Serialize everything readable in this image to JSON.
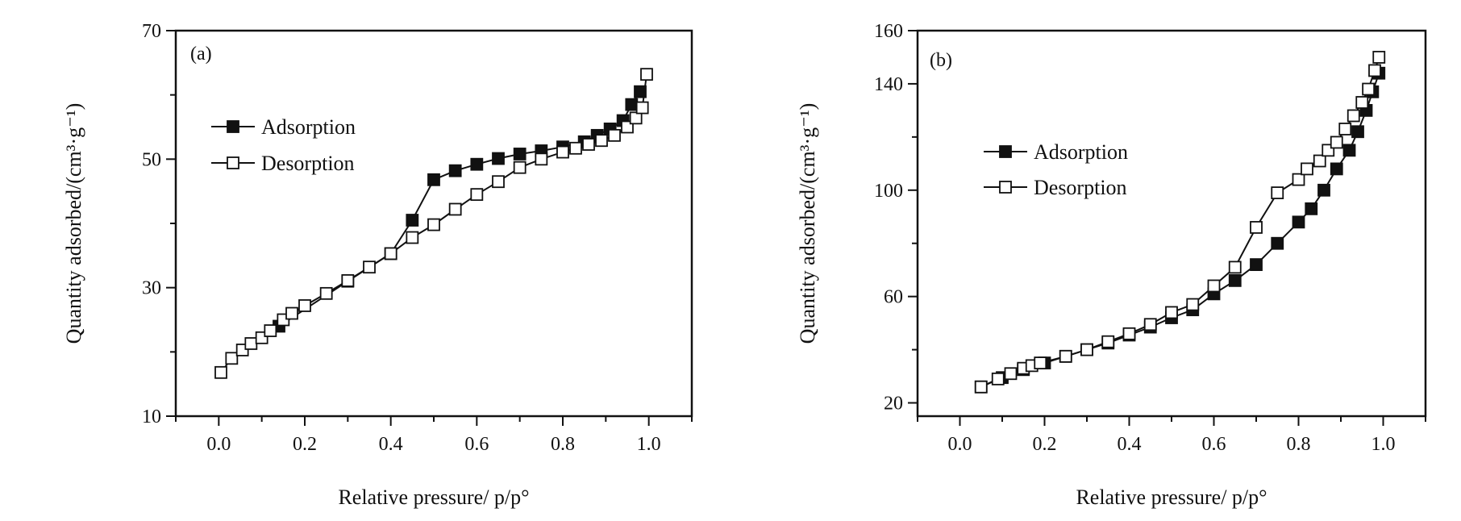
{
  "chart_data": [
    {
      "type": "line",
      "panel_label": "(a)",
      "xlabel": "Relative pressure/ p/p°",
      "ylabel": "Quantity adsorbed/(cm³·g⁻¹)",
      "xlim": [
        -0.1,
        1.1
      ],
      "ylim": [
        10,
        70
      ],
      "xticks": [
        "0.0",
        "0.2",
        "0.4",
        "0.6",
        "0.8",
        "1.0"
      ],
      "yticks": [
        "10",
        "30",
        "50",
        "70"
      ],
      "legend_position": "upper-left",
      "series": [
        {
          "name": "Adsorption",
          "marker": "filled-square",
          "x": [
            0.14,
            0.3,
            0.4,
            0.45,
            0.5,
            0.55,
            0.6,
            0.65,
            0.7,
            0.75,
            0.8,
            0.85,
            0.88,
            0.91,
            0.94,
            0.96,
            0.98
          ],
          "y": [
            24.0,
            31.0,
            35.3,
            40.5,
            46.8,
            48.2,
            49.2,
            50.1,
            50.8,
            51.3,
            51.9,
            52.7,
            53.7,
            54.7,
            56.0,
            58.5,
            60.5
          ]
        },
        {
          "name": "Desorption",
          "marker": "open-square",
          "x": [
            0.005,
            0.03,
            0.055,
            0.075,
            0.1,
            0.12,
            0.15,
            0.17,
            0.2,
            0.25,
            0.3,
            0.35,
            0.4,
            0.45,
            0.5,
            0.55,
            0.6,
            0.65,
            0.7,
            0.75,
            0.8,
            0.83,
            0.86,
            0.89,
            0.92,
            0.95,
            0.97,
            0.985,
            0.995
          ],
          "y": [
            16.8,
            19.0,
            20.3,
            21.3,
            22.2,
            23.3,
            25.0,
            26.0,
            27.2,
            29.1,
            31.1,
            33.2,
            35.3,
            37.8,
            39.8,
            42.2,
            44.5,
            46.5,
            48.7,
            50.0,
            51.1,
            51.7,
            52.3,
            52.9,
            53.7,
            55.0,
            56.4,
            58.0,
            63.2
          ]
        }
      ]
    },
    {
      "type": "line",
      "panel_label": "(b)",
      "xlabel": "Relative pressure/ p/p°",
      "ylabel": "Quantity adsorbed/(cm³·g⁻¹)",
      "xlim": [
        -0.1,
        1.1
      ],
      "ylim": [
        15,
        160
      ],
      "xticks": [
        "0.0",
        "0.2",
        "0.4",
        "0.6",
        "0.8",
        "1.0"
      ],
      "yticks": [
        "20",
        "60",
        "100",
        "140",
        "160"
      ],
      "legend_position": "upper-left",
      "series": [
        {
          "name": "Adsorption",
          "marker": "filled-square",
          "x": [
            0.05,
            0.1,
            0.15,
            0.2,
            0.25,
            0.3,
            0.35,
            0.4,
            0.45,
            0.5,
            0.55,
            0.6,
            0.65,
            0.7,
            0.75,
            0.8,
            0.83,
            0.86,
            0.89,
            0.92,
            0.94,
            0.96,
            0.975,
            0.99
          ],
          "y": [
            26.0,
            29.5,
            32.5,
            35.0,
            37.5,
            40.0,
            42.5,
            45.5,
            48.5,
            52.0,
            55.0,
            61.0,
            66.0,
            72.0,
            80.0,
            88.0,
            93.0,
            100.0,
            108.0,
            115.0,
            122.0,
            130.0,
            137.0,
            144.0
          ]
        },
        {
          "name": "Desorption",
          "marker": "open-square",
          "x": [
            0.05,
            0.09,
            0.12,
            0.15,
            0.17,
            0.19,
            0.25,
            0.3,
            0.35,
            0.4,
            0.45,
            0.5,
            0.55,
            0.6,
            0.65,
            0.7,
            0.75,
            0.8,
            0.82,
            0.85,
            0.87,
            0.89,
            0.91,
            0.93,
            0.95,
            0.965,
            0.98,
            0.99
          ],
          "y": [
            26.0,
            29.0,
            31.0,
            33.0,
            34.0,
            35.0,
            37.5,
            40.0,
            43.0,
            46.0,
            49.5,
            54.0,
            57.0,
            64.0,
            71.0,
            86.0,
            99.0,
            104.0,
            108.0,
            111.0,
            115.0,
            118.0,
            123.0,
            128.0,
            133.0,
            138.0,
            145.0,
            150.0
          ]
        }
      ]
    }
  ]
}
